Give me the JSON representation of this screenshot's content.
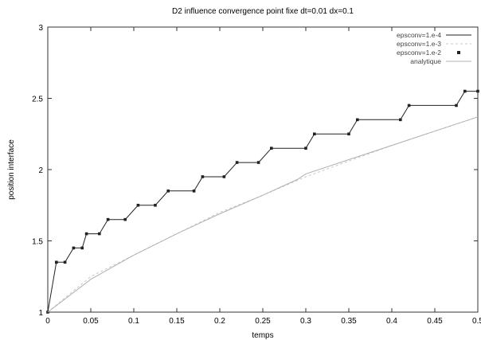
{
  "chart_data": {
    "type": "line",
    "title": "D2 influence convergence point fixe dt=0.01 dx=0.1",
    "xlabel": "temps",
    "ylabel": "position interface",
    "xlim": [
      0,
      0.5
    ],
    "ylim": [
      1,
      3
    ],
    "xticks": [
      "0",
      "0.05",
      "0.1",
      "0.15",
      "0.2",
      "0.25",
      "0.3",
      "0.35",
      "0.4",
      "0.45",
      "0.5"
    ],
    "yticks": [
      "1",
      "1.5",
      "2",
      "2.5",
      "3"
    ],
    "grid": false,
    "legend_position": "top-right",
    "series": [
      {
        "name": "epsconv=1.e-4",
        "style": "staircase-markers",
        "color": "#222222",
        "points": [
          [
            0,
            1.0
          ],
          [
            0.01,
            1.35
          ],
          [
            0.01,
            1.35
          ],
          [
            0.02,
            1.35
          ],
          [
            0.03,
            1.45
          ],
          [
            0.04,
            1.45
          ],
          [
            0.045,
            1.55
          ],
          [
            0.06,
            1.55
          ],
          [
            0.07,
            1.65
          ],
          [
            0.09,
            1.65
          ],
          [
            0.105,
            1.75
          ],
          [
            0.125,
            1.75
          ],
          [
            0.14,
            1.85
          ],
          [
            0.17,
            1.85
          ],
          [
            0.18,
            1.95
          ],
          [
            0.205,
            1.95
          ],
          [
            0.22,
            2.05
          ],
          [
            0.245,
            2.05
          ],
          [
            0.26,
            2.15
          ],
          [
            0.3,
            2.15
          ],
          [
            0.31,
            2.25
          ],
          [
            0.35,
            2.25
          ],
          [
            0.36,
            2.35
          ],
          [
            0.41,
            2.35
          ],
          [
            0.42,
            2.45
          ],
          [
            0.475,
            2.45
          ],
          [
            0.485,
            2.55
          ],
          [
            0.5,
            2.55
          ]
        ]
      },
      {
        "name": "epsconv=1.e-3",
        "style": "faint-dashed",
        "color": "#c8c8c8",
        "points": [
          [
            0,
            1.0
          ],
          [
            0.05,
            1.25
          ],
          [
            0.1,
            1.4
          ],
          [
            0.15,
            1.55
          ],
          [
            0.2,
            1.7
          ],
          [
            0.25,
            1.82
          ],
          [
            0.3,
            1.95
          ],
          [
            0.35,
            2.06
          ],
          [
            0.4,
            2.17
          ],
          [
            0.45,
            2.27
          ],
          [
            0.5,
            2.37
          ]
        ]
      },
      {
        "name": "epsconv=1.e-2",
        "style": "markers",
        "color": "#222222",
        "points": []
      },
      {
        "name": "analytique",
        "style": "faint-line",
        "color": "#b0b0b0",
        "points": [
          [
            0,
            1.0
          ],
          [
            0.05,
            1.23
          ],
          [
            0.1,
            1.4
          ],
          [
            0.15,
            1.55
          ],
          [
            0.2,
            1.69
          ],
          [
            0.25,
            1.82
          ],
          [
            0.29,
            1.93
          ],
          [
            0.3,
            1.97
          ],
          [
            0.35,
            2.07
          ],
          [
            0.4,
            2.17
          ],
          [
            0.45,
            2.27
          ],
          [
            0.5,
            2.37
          ]
        ]
      }
    ]
  }
}
